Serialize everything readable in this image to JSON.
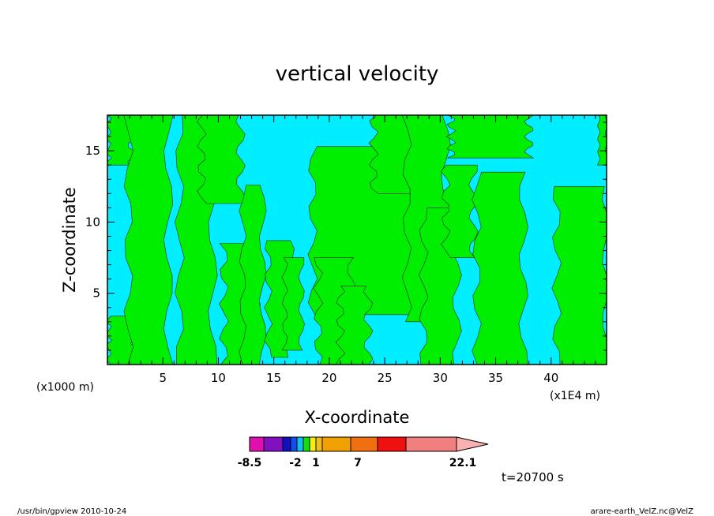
{
  "chart_data": {
    "type": "heatmap",
    "title": "vertical velocity",
    "xlabel": "X-coordinate",
    "ylabel": "Z-coordinate",
    "x_unit_left": "(x1000 m)",
    "x_unit_right": "(x1E4 m)",
    "xlim": [
      0,
      45
    ],
    "ylim": [
      0,
      17.5
    ],
    "x_ticks": [
      5,
      10,
      15,
      20,
      25,
      30,
      35,
      40
    ],
    "y_ticks": [
      5,
      10,
      15
    ],
    "background_field_color": "#00eeff",
    "positive_field_color": "#00ee00",
    "positive_regions": [
      {
        "x_min": 0.0,
        "x_max": 2.2,
        "z_top": 17.5,
        "z_bottom": 14.0
      },
      {
        "x_min": 0.0,
        "x_max": 2.5,
        "z_top": 3.4,
        "z_bottom": 0.0
      },
      {
        "x_min": 1.9,
        "x_max": 5.5,
        "z_top": 17.5,
        "z_bottom": 0.0
      },
      {
        "x_min": 6.5,
        "x_max": 9.5,
        "z_top": 17.5,
        "z_bottom": 0.0
      },
      {
        "x_min": 8.5,
        "x_max": 12.0,
        "z_top": 17.5,
        "z_bottom": 11.3
      },
      {
        "x_min": 10.5,
        "x_max": 13.4,
        "z_top": 8.5,
        "z_bottom": 0.0
      },
      {
        "x_min": 12.2,
        "x_max": 14.0,
        "z_top": 12.6,
        "z_bottom": 0.0
      },
      {
        "x_min": 14.5,
        "x_max": 16.5,
        "z_top": 8.7,
        "z_bottom": 0.5
      },
      {
        "x_min": 16.0,
        "x_max": 17.5,
        "z_top": 7.5,
        "z_bottom": 1.0
      },
      {
        "x_min": 18.5,
        "x_max": 27.5,
        "z_top": 15.3,
        "z_bottom": 3.5
      },
      {
        "x_min": 19.0,
        "x_max": 22.0,
        "z_top": 7.5,
        "z_bottom": 0.0
      },
      {
        "x_min": 21.0,
        "x_max": 23.5,
        "z_top": 5.5,
        "z_bottom": 0.0
      },
      {
        "x_min": 24.0,
        "x_max": 28.0,
        "z_top": 17.5,
        "z_bottom": 12.0
      },
      {
        "x_min": 27.0,
        "x_max": 30.5,
        "z_top": 17.5,
        "z_bottom": 3.0
      },
      {
        "x_min": 28.5,
        "x_max": 31.5,
        "z_top": 11.0,
        "z_bottom": 0.0
      },
      {
        "x_min": 30.5,
        "x_max": 33.0,
        "z_top": 14.0,
        "z_bottom": 7.5
      },
      {
        "x_min": 31.0,
        "x_max": 38.0,
        "z_top": 17.5,
        "z_bottom": 14.5
      },
      {
        "x_min": 33.3,
        "x_max": 37.5,
        "z_top": 13.5,
        "z_bottom": 0.0
      },
      {
        "x_min": 40.5,
        "x_max": 45.0,
        "z_top": 12.5,
        "z_bottom": 0.0
      },
      {
        "x_min": 44.3,
        "x_max": 45.0,
        "z_top": 17.5,
        "z_bottom": 14.0
      }
    ]
  },
  "colorbar": {
    "colors": [
      "#e010b0",
      "#8010c0",
      "#1010c0",
      "#1050f0",
      "#10c0f0",
      "#10e010",
      "#f0f010",
      "#f0c010",
      "#f0a000",
      "#f07010",
      "#f01010",
      "#f08080",
      "#f8b0b0"
    ],
    "labels": [
      "-8.5",
      "-2",
      "1",
      "7",
      "22.1"
    ]
  },
  "time_label": "t=20700 s",
  "footer": {
    "left": "/usr/bin/gpview 2010-10-24",
    "right": "arare-earth_VelZ.nc@VelZ"
  }
}
